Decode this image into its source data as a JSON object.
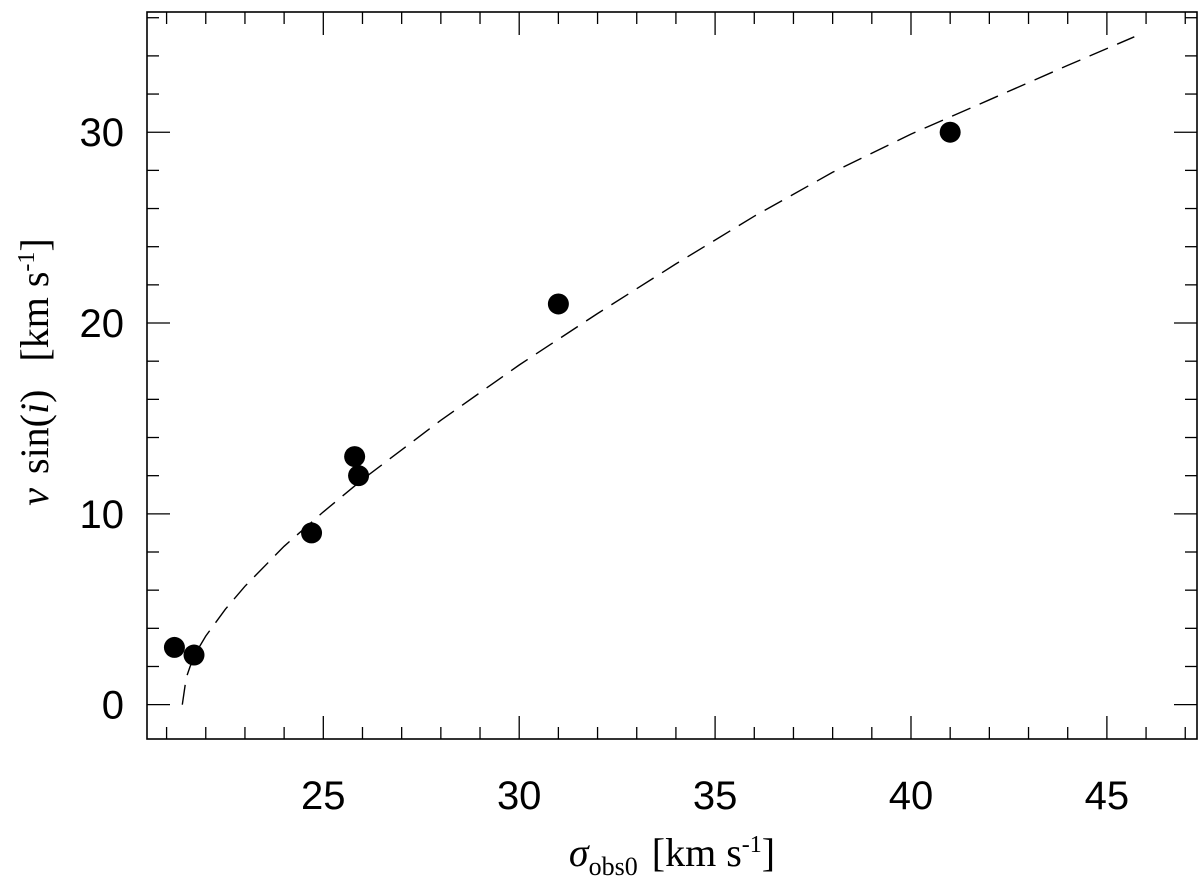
{
  "chart_data": {
    "type": "scatter",
    "xlabel": {
      "symbol": "σ",
      "sub": "obs0",
      "units": "[km s",
      "exp": "-1",
      "close": "]"
    },
    "ylabel": {
      "symbol": "v",
      "func": "sin(",
      "arg": "i",
      "close": ")",
      "units": "[km s",
      "exp": "-1",
      "units_close": "]"
    },
    "xlim": [
      20.5,
      47.3
    ],
    "ylim": [
      -1.8,
      36.3
    ],
    "xticks_major": [
      25,
      30,
      35,
      40,
      45
    ],
    "xticks_minor_step": 1,
    "yticks_major": [
      0,
      10,
      20,
      30
    ],
    "yticks_minor_step": 2,
    "grid": false,
    "series": [
      {
        "kind": "points",
        "marker": "filled-circle",
        "color": "#000000",
        "x": [
          21.2,
          21.7,
          24.7,
          25.8,
          25.9,
          31.0,
          41.0
        ],
        "y": [
          3.0,
          2.6,
          9.0,
          13.0,
          12.0,
          21.0,
          30.0
        ]
      },
      {
        "kind": "fit-curve",
        "style": "dashed",
        "color": "#000000",
        "x": [
          21.4,
          21.5,
          21.6,
          21.8,
          22.0,
          22.5,
          23.0,
          24.0,
          25.0,
          26.0,
          28.0,
          30.0,
          32.0,
          34.0,
          36.0,
          38.0,
          40.0,
          42.0,
          44.0,
          45.7
        ],
        "y": [
          0.0,
          1.4,
          2.0,
          2.9,
          3.6,
          5.0,
          6.2,
          8.3,
          10.1,
          11.8,
          14.9,
          17.8,
          20.5,
          23.1,
          25.6,
          27.9,
          29.9,
          31.7,
          33.5,
          35.0
        ]
      }
    ]
  }
}
